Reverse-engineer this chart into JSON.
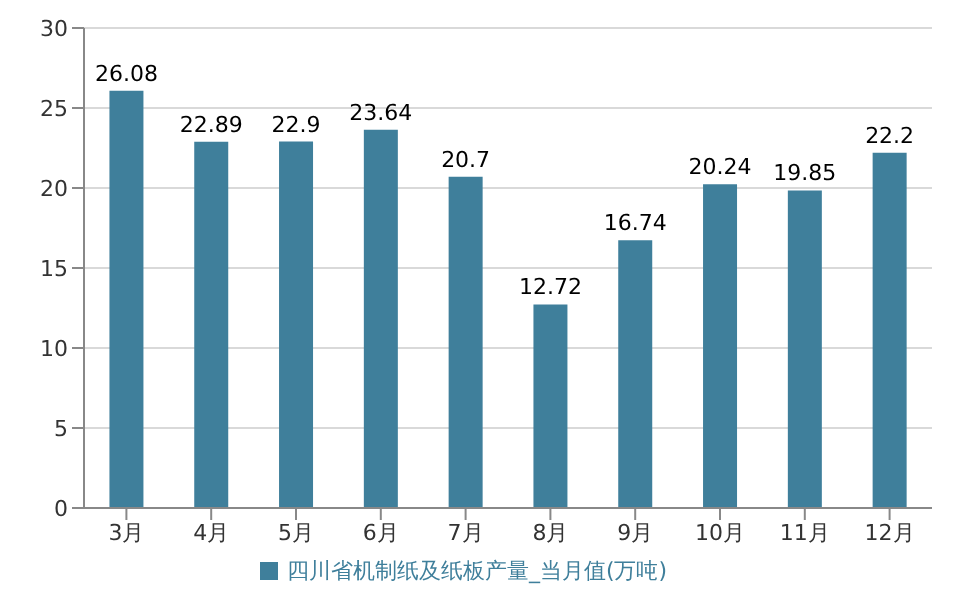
{
  "chart_data": {
    "type": "bar",
    "categories": [
      "3月",
      "4月",
      "5月",
      "6月",
      "7月",
      "8月",
      "9月",
      "10月",
      "11月",
      "12月"
    ],
    "series": [
      {
        "name": "四川省机制纸及纸板产量_当月值(万吨)",
        "color": "#3f7f9b",
        "values": [
          26.08,
          22.89,
          22.9,
          23.64,
          20.7,
          12.72,
          16.74,
          20.24,
          19.85,
          22.2
        ]
      }
    ],
    "ylim": [
      0,
      30
    ],
    "yticks": [
      0,
      5,
      10,
      15,
      20,
      25,
      30
    ],
    "grid": "y",
    "legend": "bottom",
    "data_labels": true
  }
}
